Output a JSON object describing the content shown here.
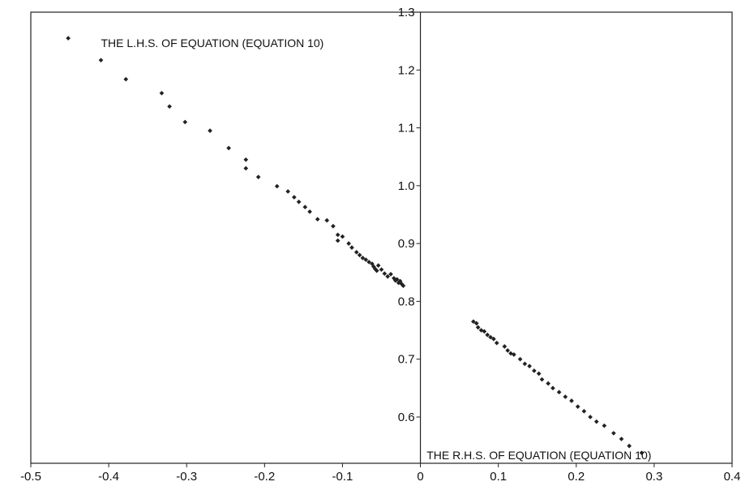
{
  "chart_data": {
    "type": "scatter",
    "title": "",
    "xlabel": "",
    "ylabel": "",
    "xlim": [
      -0.5,
      0.4
    ],
    "ylim": [
      0.52,
      1.3
    ],
    "x_ticks": [
      "-0.5",
      "-0.4",
      "-0.3",
      "-0.2",
      "-0.1",
      "0",
      "0.1",
      "0.2",
      "0.3",
      "0.4"
    ],
    "y_ticks": [
      "0.6",
      "0.7",
      "0.8",
      "0.9",
      "1.0",
      "1.1",
      "1.2",
      "1.3"
    ],
    "grid": false,
    "annotations": [
      {
        "text": "THE L.H.S. OF EQUATION (EQUATION 10)",
        "x": -0.41,
        "y": 1.24
      },
      {
        "text": "THE R.H.S. OF EQUATION (EQUATION 10)",
        "x": 0.008,
        "y": 0.527
      }
    ],
    "series": [
      {
        "x": [
          -0.452,
          -0.41,
          -0.378,
          -0.332,
          -0.322,
          -0.302,
          -0.27,
          -0.246,
          -0.224,
          -0.224,
          -0.208,
          -0.184,
          -0.17,
          -0.162,
          -0.156,
          -0.148,
          -0.142,
          -0.132,
          -0.12,
          -0.112,
          -0.106,
          -0.106,
          -0.1,
          -0.092,
          -0.088,
          -0.082,
          -0.078,
          -0.074,
          -0.07,
          -0.066,
          -0.062,
          -0.06,
          -0.058,
          -0.056,
          -0.054,
          -0.05,
          -0.046,
          -0.042,
          -0.038,
          -0.034,
          -0.032,
          -0.03,
          -0.028,
          -0.026,
          -0.024,
          -0.022
        ],
        "y": [
          1.255,
          1.217,
          1.184,
          1.16,
          1.137,
          1.11,
          1.095,
          1.065,
          1.045,
          1.03,
          1.015,
          0.999,
          0.99,
          0.98,
          0.972,
          0.963,
          0.955,
          0.942,
          0.94,
          0.93,
          0.915,
          0.905,
          0.912,
          0.9,
          0.893,
          0.885,
          0.88,
          0.875,
          0.872,
          0.868,
          0.865,
          0.86,
          0.856,
          0.853,
          0.862,
          0.855,
          0.848,
          0.843,
          0.847,
          0.84,
          0.836,
          0.838,
          0.832,
          0.835,
          0.83,
          0.827
        ]
      },
      {
        "x": [
          0.068,
          0.072,
          0.074,
          0.078,
          0.082,
          0.086,
          0.09,
          0.094,
          0.098,
          0.108,
          0.112,
          0.116,
          0.12,
          0.128,
          0.134,
          0.14,
          0.146,
          0.152,
          0.156,
          0.164,
          0.17,
          0.178,
          0.186,
          0.194,
          0.202,
          0.21,
          0.218,
          0.226,
          0.236,
          0.248,
          0.258,
          0.268,
          0.284
        ],
        "y": [
          0.765,
          0.762,
          0.755,
          0.75,
          0.748,
          0.742,
          0.738,
          0.735,
          0.728,
          0.722,
          0.715,
          0.71,
          0.708,
          0.7,
          0.692,
          0.688,
          0.68,
          0.675,
          0.665,
          0.658,
          0.65,
          0.643,
          0.635,
          0.628,
          0.618,
          0.61,
          0.6,
          0.592,
          0.585,
          0.572,
          0.562,
          0.55,
          0.538
        ]
      }
    ]
  }
}
